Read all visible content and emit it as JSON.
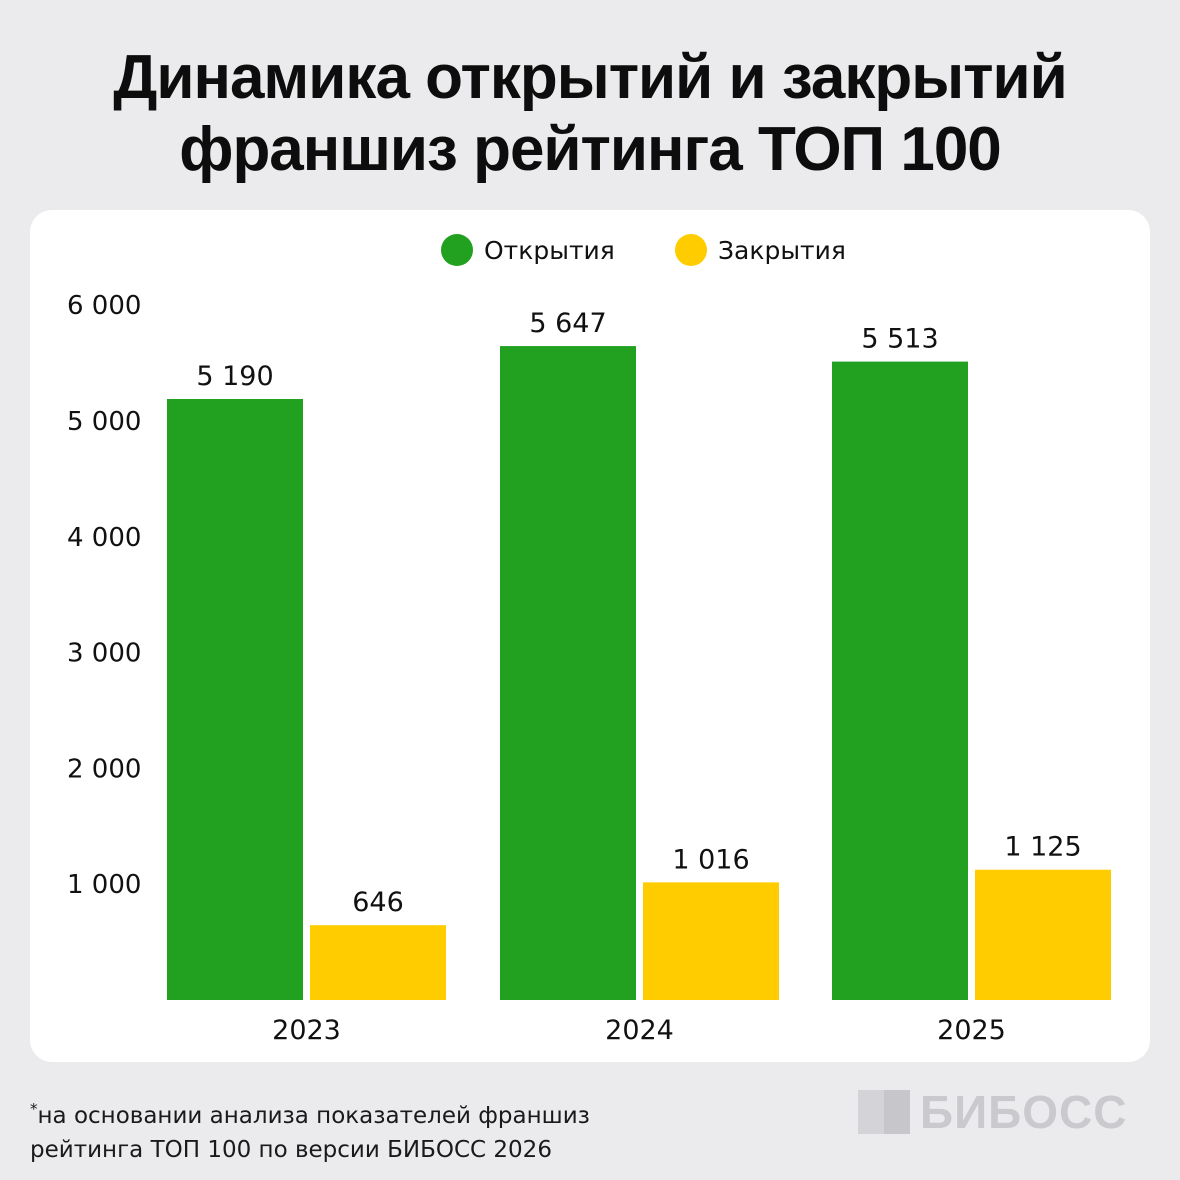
{
  "title": {
    "line1": "Динамика открытий и закрытий",
    "line2": "франшиз рейтинга ТОП 100"
  },
  "colors": {
    "openings": "#22a020",
    "closings": "#ffcc00",
    "background": "#ebebee",
    "card": "#ffffff"
  },
  "chart_data": {
    "type": "bar",
    "categories": [
      "2023",
      "2024",
      "2025"
    ],
    "series": [
      {
        "name": "Открытия",
        "color": "#22a020",
        "values": [
          5190,
          5647,
          5513
        ],
        "labels": [
          "5 190",
          "5 647",
          "5 513"
        ]
      },
      {
        "name": "Закрытия",
        "color": "#ffcc00",
        "values": [
          646,
          1016,
          1125
        ],
        "labels": [
          "646",
          "1 016",
          "1 125"
        ]
      }
    ],
    "ylim": [
      0,
      6000
    ],
    "yticks": [
      1000,
      2000,
      3000,
      4000,
      5000,
      6000
    ],
    "ytick_labels": [
      "1 000",
      "2 000",
      "3 000",
      "4 000",
      "5 000",
      "6 000"
    ],
    "legend": "top-center",
    "grid": false
  },
  "footnote": {
    "star": "*",
    "line1": "на основании анализа показателей франшиз",
    "line2": "рейтинга ТОП 100 по версии БИБОСС 2026"
  },
  "logo": {
    "text": "БИБОСС"
  }
}
